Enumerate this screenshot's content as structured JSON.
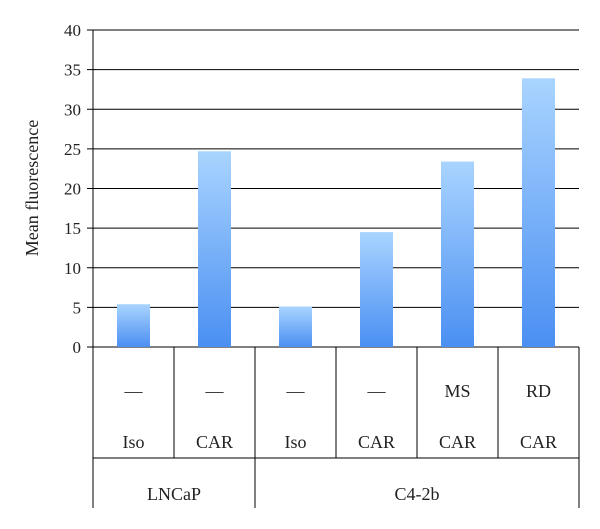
{
  "chart_data": {
    "type": "bar",
    "ylabel": "Mean fluorescence",
    "xlabel": "",
    "title": "",
    "ylim": [
      0,
      40
    ],
    "yticks": [
      0,
      5,
      10,
      15,
      20,
      25,
      30,
      35,
      40
    ],
    "grid": true,
    "categories": [
      {
        "treatment": "—",
        "antibody": "Iso",
        "cell_line": "LNCaP"
      },
      {
        "treatment": "—",
        "antibody": "CAR",
        "cell_line": "LNCaP"
      },
      {
        "treatment": "—",
        "antibody": "Iso",
        "cell_line": "C4-2b"
      },
      {
        "treatment": "—",
        "antibody": "CAR",
        "cell_line": "C4-2b"
      },
      {
        "treatment": "MS",
        "antibody": "CAR",
        "cell_line": "C4-2b"
      },
      {
        "treatment": "RD",
        "antibody": "CAR",
        "cell_line": "C4-2b"
      }
    ],
    "values": [
      5.4,
      24.7,
      5.1,
      14.5,
      23.4,
      33.9
    ],
    "groups": [
      {
        "label": "LNCaP",
        "count": 2
      },
      {
        "label": "C4-2b",
        "count": 4
      }
    ],
    "colors": {
      "bar_top": "#a9d4ff",
      "bar_bottom": "#4a8ff2",
      "grid": "#000000"
    }
  }
}
